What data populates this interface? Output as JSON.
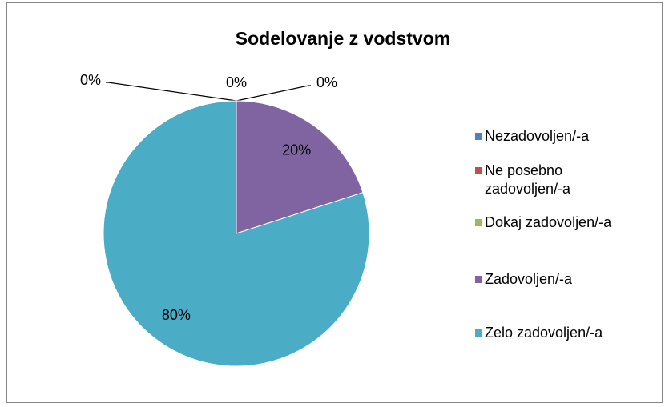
{
  "chart_data": {
    "type": "pie",
    "title": "Sodelovanje z vodstvom",
    "categories": [
      "Nezadovoljen/-a",
      "Ne posebno zadovoljen/-a",
      "Dokaj zadovoljen/-a",
      "Zadovoljen/-a",
      "Zelo zadovoljen/-a"
    ],
    "values": [
      0,
      0,
      0,
      20,
      80
    ],
    "value_labels": [
      "0%",
      "0%",
      "0%",
      "20%",
      "80%"
    ],
    "colors": [
      "#4f81bd",
      "#c0504d",
      "#9bbb59",
      "#8064a2",
      "#4bacc6"
    ],
    "legend": "right"
  }
}
